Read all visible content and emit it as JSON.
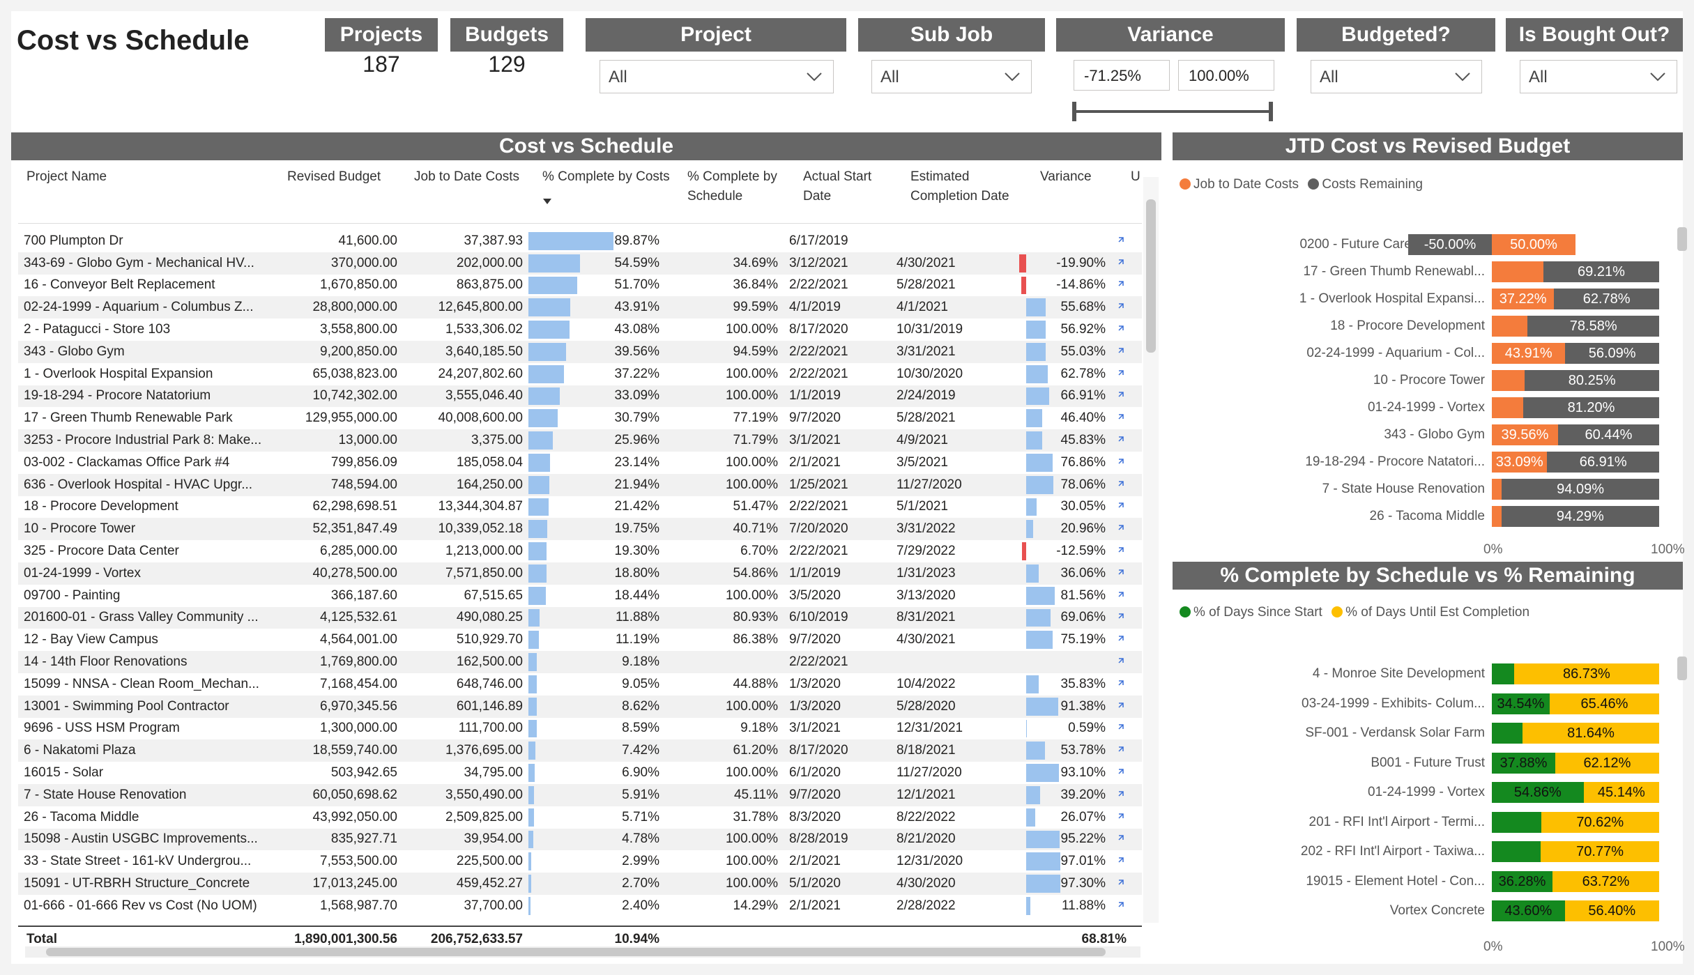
{
  "title": "Cost vs Schedule",
  "kpis": [
    {
      "label": "Projects",
      "value": "187"
    },
    {
      "label": "Budgets",
      "value": "129"
    }
  ],
  "slicers": {
    "project": {
      "label": "Project",
      "value": "All"
    },
    "subjob": {
      "label": "Sub Job",
      "value": "All"
    },
    "variance": {
      "label": "Variance",
      "min": "-71.25%",
      "max": "100.00%"
    },
    "budgeted": {
      "label": "Budgeted?",
      "value": "All"
    },
    "boughtout": {
      "label": "Is Bought Out?",
      "value": "All"
    }
  },
  "table": {
    "title": "Cost vs Schedule",
    "columns": [
      "Project Name",
      "Revised Budget",
      "Job to Date Costs",
      "% Complete by Costs",
      "% Complete by Schedule",
      "Actual Start Date",
      "Estimated Completion Date",
      "Variance",
      "U"
    ],
    "rows": [
      {
        "name": "700 Plumpton Dr",
        "budget": "41,600.00",
        "jtd": "37,387.93",
        "cost": "89.87%",
        "cost_v": 89.87,
        "sched": "",
        "start": "6/17/2019",
        "end": "",
        "var": "",
        "var_v": 0
      },
      {
        "name": "343-69 - Globo Gym - Mechanical HV...",
        "budget": "370,000.00",
        "jtd": "202,000.00",
        "cost": "54.59%",
        "cost_v": 54.59,
        "sched": "34.69%",
        "start": "3/12/2021",
        "end": "4/30/2021",
        "var": "-19.90%",
        "var_v": -19.9
      },
      {
        "name": "16 - Conveyor Belt Replacement",
        "budget": "1,670,850.00",
        "jtd": "863,875.00",
        "cost": "51.70%",
        "cost_v": 51.7,
        "sched": "36.84%",
        "start": "2/22/2021",
        "end": "5/28/2021",
        "var": "-14.86%",
        "var_v": -14.86
      },
      {
        "name": "02-24-1999 - Aquarium - Columbus Z...",
        "budget": "28,800,000.00",
        "jtd": "12,645,800.00",
        "cost": "43.91%",
        "cost_v": 43.91,
        "sched": "99.59%",
        "start": "4/1/2019",
        "end": "4/1/2021",
        "var": "55.68%",
        "var_v": 55.68
      },
      {
        "name": "2 - Patagucci - Store 103",
        "budget": "3,558,800.00",
        "jtd": "1,533,306.02",
        "cost": "43.08%",
        "cost_v": 43.08,
        "sched": "100.00%",
        "start": "8/17/2020",
        "end": "10/31/2019",
        "var": "56.92%",
        "var_v": 56.92
      },
      {
        "name": "343 - Globo Gym",
        "budget": "9,200,850.00",
        "jtd": "3,640,185.50",
        "cost": "39.56%",
        "cost_v": 39.56,
        "sched": "94.59%",
        "start": "2/22/2021",
        "end": "3/31/2021",
        "var": "55.03%",
        "var_v": 55.03
      },
      {
        "name": "1 - Overlook Hospital Expansion",
        "budget": "65,038,823.00",
        "jtd": "24,207,802.60",
        "cost": "37.22%",
        "cost_v": 37.22,
        "sched": "100.00%",
        "start": "2/22/2021",
        "end": "10/30/2020",
        "var": "62.78%",
        "var_v": 62.78
      },
      {
        "name": "19-18-294 - Procore Natatorium",
        "budget": "10,742,302.00",
        "jtd": "3,555,046.40",
        "cost": "33.09%",
        "cost_v": 33.09,
        "sched": "100.00%",
        "start": "1/1/2019",
        "end": "2/24/2019",
        "var": "66.91%",
        "var_v": 66.91
      },
      {
        "name": "17 - Green Thumb Renewable Park",
        "budget": "129,955,000.00",
        "jtd": "40,008,600.00",
        "cost": "30.79%",
        "cost_v": 30.79,
        "sched": "77.19%",
        "start": "9/7/2020",
        "end": "5/28/2021",
        "var": "46.40%",
        "var_v": 46.4
      },
      {
        "name": "3253 - Procore Industrial Park 8: Make...",
        "budget": "13,000.00",
        "jtd": "3,375.00",
        "cost": "25.96%",
        "cost_v": 25.96,
        "sched": "71.79%",
        "start": "3/1/2021",
        "end": "4/9/2021",
        "var": "45.83%",
        "var_v": 45.83
      },
      {
        "name": "03-002 - Clackamas Office Park #4",
        "budget": "799,856.09",
        "jtd": "185,058.04",
        "cost": "23.14%",
        "cost_v": 23.14,
        "sched": "100.00%",
        "start": "2/1/2021",
        "end": "3/5/2021",
        "var": "76.86%",
        "var_v": 76.86
      },
      {
        "name": "636 - Overlook Hospital - HVAC Upgr...",
        "budget": "748,594.00",
        "jtd": "164,250.00",
        "cost": "21.94%",
        "cost_v": 21.94,
        "sched": "100.00%",
        "start": "1/25/2021",
        "end": "11/27/2020",
        "var": "78.06%",
        "var_v": 78.06
      },
      {
        "name": "18 - Procore Development",
        "budget": "62,298,698.51",
        "jtd": "13,344,304.87",
        "cost": "21.42%",
        "cost_v": 21.42,
        "sched": "51.47%",
        "start": "2/22/2021",
        "end": "5/1/2021",
        "var": "30.05%",
        "var_v": 30.05
      },
      {
        "name": "10 - Procore Tower",
        "budget": "52,351,847.49",
        "jtd": "10,339,052.18",
        "cost": "19.75%",
        "cost_v": 19.75,
        "sched": "40.71%",
        "start": "7/20/2020",
        "end": "3/31/2022",
        "var": "20.96%",
        "var_v": 20.96
      },
      {
        "name": "325 - Procore Data Center",
        "budget": "6,285,000.00",
        "jtd": "1,213,000.00",
        "cost": "19.30%",
        "cost_v": 19.3,
        "sched": "6.70%",
        "start": "2/22/2021",
        "end": "7/29/2022",
        "var": "-12.59%",
        "var_v": -12.59
      },
      {
        "name": "01-24-1999 - Vortex",
        "budget": "40,278,500.00",
        "jtd": "7,571,850.00",
        "cost": "18.80%",
        "cost_v": 18.8,
        "sched": "54.86%",
        "start": "1/1/2019",
        "end": "1/31/2023",
        "var": "36.06%",
        "var_v": 36.06
      },
      {
        "name": "09700 - Painting",
        "budget": "366,187.60",
        "jtd": "67,515.65",
        "cost": "18.44%",
        "cost_v": 18.44,
        "sched": "100.00%",
        "start": "3/5/2020",
        "end": "3/13/2020",
        "var": "81.56%",
        "var_v": 81.56
      },
      {
        "name": "201600-01 - Grass Valley Community ...",
        "budget": "4,125,532.61",
        "jtd": "490,080.25",
        "cost": "11.88%",
        "cost_v": 11.88,
        "sched": "80.93%",
        "start": "6/10/2019",
        "end": "8/31/2021",
        "var": "69.06%",
        "var_v": 69.06
      },
      {
        "name": "12 - Bay View Campus",
        "budget": "4,564,001.00",
        "jtd": "510,929.70",
        "cost": "11.19%",
        "cost_v": 11.19,
        "sched": "86.38%",
        "start": "9/7/2020",
        "end": "4/30/2021",
        "var": "75.19%",
        "var_v": 75.19
      },
      {
        "name": "14 - 14th Floor Renovations",
        "budget": "1,769,800.00",
        "jtd": "162,500.00",
        "cost": "9.18%",
        "cost_v": 9.18,
        "sched": "",
        "start": "2/22/2021",
        "end": "",
        "var": "",
        "var_v": 0
      },
      {
        "name": "15099 - NNSA - Clean Room_Mechan...",
        "budget": "7,168,454.00",
        "jtd": "648,746.00",
        "cost": "9.05%",
        "cost_v": 9.05,
        "sched": "44.88%",
        "start": "1/3/2020",
        "end": "10/4/2022",
        "var": "35.83%",
        "var_v": 35.83
      },
      {
        "name": "13001 - Swimming Pool Contractor",
        "budget": "6,970,345.56",
        "jtd": "601,146.89",
        "cost": "8.62%",
        "cost_v": 8.62,
        "sched": "100.00%",
        "start": "1/3/2020",
        "end": "5/28/2020",
        "var": "91.38%",
        "var_v": 91.38
      },
      {
        "name": "9696 - USS HSM Program",
        "budget": "1,300,000.00",
        "jtd": "111,700.00",
        "cost": "8.59%",
        "cost_v": 8.59,
        "sched": "9.18%",
        "start": "3/1/2021",
        "end": "12/31/2021",
        "var": "0.59%",
        "var_v": 0.59
      },
      {
        "name": "6 - Nakatomi Plaza",
        "budget": "18,559,740.00",
        "jtd": "1,376,695.00",
        "cost": "7.42%",
        "cost_v": 7.42,
        "sched": "61.20%",
        "start": "8/17/2020",
        "end": "8/18/2021",
        "var": "53.78%",
        "var_v": 53.78
      },
      {
        "name": "16015 - Solar",
        "budget": "503,942.65",
        "jtd": "34,795.00",
        "cost": "6.90%",
        "cost_v": 6.9,
        "sched": "100.00%",
        "start": "6/1/2020",
        "end": "11/27/2020",
        "var": "93.10%",
        "var_v": 93.1
      },
      {
        "name": "7 - State House Renovation",
        "budget": "60,050,698.62",
        "jtd": "3,550,490.00",
        "cost": "5.91%",
        "cost_v": 5.91,
        "sched": "45.11%",
        "start": "9/7/2020",
        "end": "12/1/2021",
        "var": "39.20%",
        "var_v": 39.2
      },
      {
        "name": "26 - Tacoma Middle",
        "budget": "43,992,050.00",
        "jtd": "2,509,825.00",
        "cost": "5.71%",
        "cost_v": 5.71,
        "sched": "31.78%",
        "start": "8/3/2020",
        "end": "8/22/2022",
        "var": "26.07%",
        "var_v": 26.07
      },
      {
        "name": "15098 - Austin USGBC Improvements...",
        "budget": "835,927.71",
        "jtd": "39,954.00",
        "cost": "4.78%",
        "cost_v": 4.78,
        "sched": "100.00%",
        "start": "8/28/2019",
        "end": "8/21/2020",
        "var": "95.22%",
        "var_v": 95.22
      },
      {
        "name": "33 - State Street - 161-kV Undergrou...",
        "budget": "7,553,500.00",
        "jtd": "225,500.00",
        "cost": "2.99%",
        "cost_v": 2.99,
        "sched": "100.00%",
        "start": "2/1/2021",
        "end": "12/31/2020",
        "var": "97.01%",
        "var_v": 97.01
      },
      {
        "name": "15091 - UT-RBRH Structure_Concrete",
        "budget": "17,013,245.00",
        "jtd": "459,452.27",
        "cost": "2.70%",
        "cost_v": 2.7,
        "sched": "100.00%",
        "start": "5/1/2020",
        "end": "4/30/2020",
        "var": "97.30%",
        "var_v": 97.3
      },
      {
        "name": "01-666 - 01-666 Rev vs Cost (No UOM)",
        "budget": "1,568,987.70",
        "jtd": "37,700.00",
        "cost": "2.40%",
        "cost_v": 2.4,
        "sched": "14.29%",
        "start": "2/1/2021",
        "end": "2/28/2022",
        "var": "11.88%",
        "var_v": 11.88
      }
    ],
    "total": {
      "label": "Total",
      "budget": "1,890,001,300.56",
      "jtd": "206,752,633.57",
      "cost": "10.94%",
      "var": "68.81%"
    }
  },
  "chart_data": [
    {
      "type": "bar",
      "title": "JTD Cost vs Revised Budget",
      "categories": [
        "0200 - Future Cares Children'...",
        "17 - Green Thumb Renewabl...",
        "1 - Overlook Hospital Expansi...",
        "18 - Procore Development",
        "02-24-1999 - Aquarium - Col...",
        "10 - Procore Tower",
        "01-24-1999 - Vortex",
        "343 - Globo Gym",
        "19-18-294 - Procore Natatori...",
        "7 - State House Renovation",
        "26 - Tacoma Middle"
      ],
      "series": [
        {
          "name": "Job to Date Costs",
          "color": "#f47c3c",
          "values": [
            50.0,
            30.79,
            37.22,
            21.42,
            43.91,
            19.75,
            18.8,
            39.56,
            33.09,
            5.91,
            5.71
          ],
          "labels": [
            "50.00%",
            "",
            "37.22%",
            "",
            "43.91%",
            "",
            "",
            "39.56%",
            "33.09%",
            "",
            ""
          ]
        },
        {
          "name": "Costs Remaining",
          "color": "#5f5f5f",
          "values": [
            -50.0,
            69.21,
            62.78,
            78.58,
            56.09,
            80.25,
            81.2,
            60.44,
            66.91,
            94.09,
            94.29
          ],
          "labels": [
            "-50.00%",
            "69.21%",
            "62.78%",
            "78.58%",
            "56.09%",
            "80.25%",
            "81.20%",
            "60.44%",
            "66.91%",
            "94.09%",
            "94.29%"
          ]
        }
      ],
      "xticks": [
        "0%",
        "100%"
      ]
    },
    {
      "type": "bar",
      "title": "% Complete by Schedule vs % Remaining",
      "categories": [
        "4 - Monroe Site Development",
        "03-24-1999 - Exhibits- Colum...",
        "SF-001 - Verdansk Solar Farm",
        "B001 - Future Trust",
        "01-24-1999 - Vortex",
        "201 - RFI Int'l Airport - Termi...",
        "202 - RFI Int'l Airport - Taxiwa...",
        "19015 - Element Hotel - Con...",
        "Vortex Concrete"
      ],
      "series": [
        {
          "name": "% of Days Since Start",
          "color": "#14891f",
          "values": [
            13.27,
            34.54,
            18.36,
            37.88,
            54.86,
            29.38,
            29.23,
            36.28,
            43.6
          ],
          "labels": [
            "",
            "34.54%",
            "",
            "37.88%",
            "54.86%",
            "",
            "",
            "36.28%",
            "43.60%"
          ]
        },
        {
          "name": "% of Days Until Est Completion",
          "color": "#fdbf00",
          "values": [
            86.73,
            65.46,
            81.64,
            62.12,
            45.14,
            70.62,
            70.77,
            63.72,
            56.4
          ],
          "labels": [
            "86.73%",
            "65.46%",
            "81.64%",
            "62.12%",
            "45.14%",
            "70.62%",
            "70.77%",
            "63.72%",
            "56.40%"
          ]
        }
      ],
      "xticks": [
        "0%",
        "100%"
      ]
    }
  ]
}
